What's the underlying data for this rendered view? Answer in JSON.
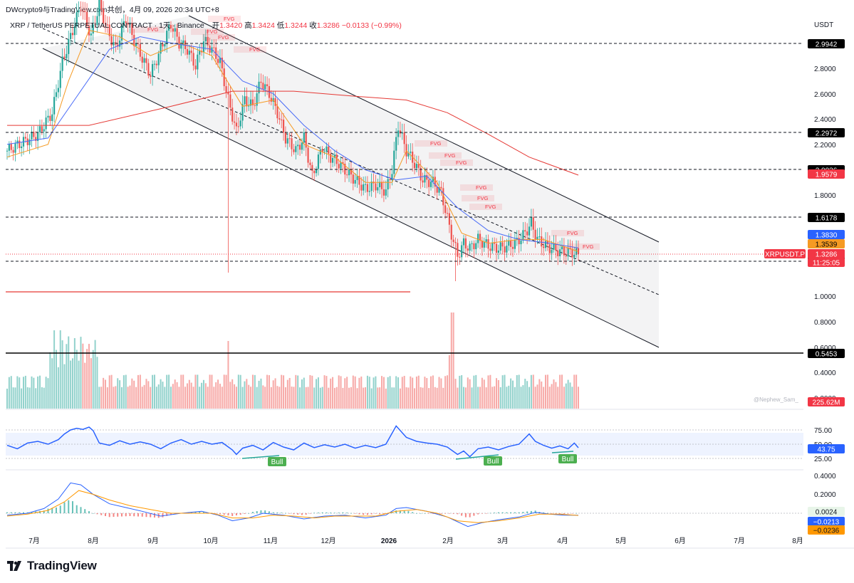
{
  "header": {
    "source_line": "DWcrypto9与TradingView.com共创，4月 09, 2026 20:34 UTC+8"
  },
  "legend": {
    "symbol": "XRP / TetherUS PERPETUAL CONTRACT · 1天 · Binance",
    "open_label": "开",
    "open": "1.3420",
    "high_label": "高",
    "high": "1.3424",
    "low_label": "低",
    "low": "1.3244",
    "close_label": "收",
    "close": "1.3286",
    "change": "−0.0133 (−0.99%)"
  },
  "watermark": "@Nephew_Sam_",
  "footer": {
    "brand": "TradingView"
  },
  "colors": {
    "up": "#26a69a",
    "down": "#ef5350",
    "ema_fast": "#f59a23",
    "ema_mid": "#4a6cf7",
    "ema_slow": "#e53935",
    "rsi": "#2962ff",
    "macd": "#2962ff",
    "signal": "#ff9800"
  },
  "chart_data": [
    {
      "type": "candlestick",
      "title": "XRP / TetherUS PERPETUAL CONTRACT · 1天 · Binance",
      "y_unit": "USDT",
      "y_ticks": [
        "2.8000",
        "2.6000",
        "2.4000",
        "2.2000",
        "2.0000",
        "1.8000",
        "1.0000",
        "0.8000",
        "0.6000",
        "0.4000",
        "0.2000"
      ],
      "x_ticks": [
        "7月",
        "8月",
        "9月",
        "10月",
        "11月",
        "12月",
        "2026",
        "2月",
        "3月",
        "4月",
        "5月",
        "6月",
        "7月",
        "8月"
      ],
      "ylim": [
        0.2,
        3.25
      ],
      "close_series": [
        [
          0,
          2.15
        ],
        [
          8,
          2.22
        ],
        [
          15,
          2.28
        ],
        [
          22,
          2.45
        ],
        [
          27,
          2.85
        ],
        [
          31,
          3.05
        ],
        [
          36,
          3.3
        ],
        [
          41,
          3.05
        ],
        [
          45,
          3.3
        ],
        [
          49,
          3.1
        ],
        [
          53,
          2.95
        ],
        [
          58,
          3.2
        ],
        [
          62,
          3.02
        ],
        [
          66,
          2.88
        ],
        [
          70,
          2.75
        ],
        [
          75,
          2.95
        ],
        [
          80,
          3.15
        ],
        [
          84,
          3.0
        ],
        [
          88,
          2.95
        ],
        [
          92,
          2.82
        ],
        [
          96,
          3.02
        ],
        [
          100,
          2.95
        ],
        [
          104,
          2.85
        ],
        [
          108,
          2.55
        ],
        [
          112,
          2.3
        ],
        [
          116,
          2.55
        ],
        [
          120,
          2.5
        ],
        [
          124,
          2.7
        ],
        [
          128,
          2.6
        ],
        [
          132,
          2.45
        ],
        [
          136,
          2.25
        ],
        [
          141,
          2.15
        ],
        [
          145,
          2.25
        ],
        [
          149,
          1.95
        ],
        [
          154,
          2.18
        ],
        [
          158,
          2.1
        ],
        [
          162,
          2.05
        ],
        [
          166,
          1.98
        ],
        [
          170,
          1.92
        ],
        [
          175,
          1.85
        ],
        [
          180,
          1.88
        ],
        [
          185,
          1.83
        ],
        [
          188,
          2.0
        ],
        [
          191,
          2.35
        ],
        [
          195,
          2.15
        ],
        [
          199,
          2.05
        ],
        [
          203,
          1.92
        ],
        [
          208,
          1.9
        ],
        [
          212,
          1.82
        ],
        [
          216,
          1.55
        ],
        [
          220,
          1.32
        ],
        [
          223,
          1.42
        ],
        [
          226,
          1.38
        ],
        [
          230,
          1.45
        ],
        [
          235,
          1.4
        ],
        [
          240,
          1.38
        ],
        [
          245,
          1.4
        ],
        [
          249,
          1.43
        ],
        [
          253,
          1.5
        ],
        [
          256,
          1.58
        ],
        [
          259,
          1.45
        ],
        [
          263,
          1.4
        ],
        [
          267,
          1.37
        ],
        [
          272,
          1.35
        ],
        [
          276,
          1.35
        ],
        [
          279,
          1.33
        ]
      ],
      "series": [
        {
          "name": "",
          "points": [
            [
              0,
              2.1
            ],
            [
              20,
              2.2
            ],
            [
              30,
              2.7
            ],
            [
              40,
              3.1
            ],
            [
              55,
              3.05
            ],
            [
              70,
              2.9
            ],
            [
              85,
              3.0
            ],
            [
              100,
              2.9
            ],
            [
              115,
              2.5
            ],
            [
              130,
              2.55
            ],
            [
              145,
              2.2
            ],
            [
              160,
              2.1
            ],
            [
              175,
              1.9
            ],
            [
              188,
              1.9
            ],
            [
              195,
              2.15
            ],
            [
              210,
              1.9
            ],
            [
              222,
              1.5
            ],
            [
              235,
              1.42
            ],
            [
              250,
              1.45
            ],
            [
              262,
              1.45
            ],
            [
              279,
              1.3539
            ]
          ]
        },
        {
          "name": "",
          "points": [
            [
              0,
              2.2
            ],
            [
              20,
              2.25
            ],
            [
              35,
              2.6
            ],
            [
              50,
              2.95
            ],
            [
              65,
              3.05
            ],
            [
              80,
              3.0
            ],
            [
              100,
              2.95
            ],
            [
              115,
              2.7
            ],
            [
              130,
              2.6
            ],
            [
              145,
              2.35
            ],
            [
              160,
              2.15
            ],
            [
              175,
              2.0
            ],
            [
              190,
              1.92
            ],
            [
              205,
              1.95
            ],
            [
              220,
              1.7
            ],
            [
              235,
              1.52
            ],
            [
              250,
              1.45
            ],
            [
              265,
              1.42
            ],
            [
              279,
              1.383
            ]
          ]
        },
        {
          "name": "",
          "points": [
            [
              0,
              2.35
            ],
            [
              40,
              2.35
            ],
            [
              80,
              2.5
            ],
            [
              110,
              2.62
            ],
            [
              140,
              2.62
            ],
            [
              170,
              2.58
            ],
            [
              195,
              2.55
            ],
            [
              215,
              2.45
            ],
            [
              235,
              2.28
            ],
            [
              255,
              2.1
            ],
            [
              279,
              1.9579
            ]
          ]
        }
      ],
      "levels": [
        "2.9942",
        "2.2972",
        "2.0036",
        "1.6178",
        "1.2771",
        "0.5453"
      ],
      "price_badges": [
        {
          "label": "1.9579",
          "bg": "#f23645",
          "fg": "#ffffff"
        },
        {
          "label": "1.3830",
          "bg": "#2962ff",
          "fg": "#ffffff"
        },
        {
          "label": "1.3539",
          "bg": "#f59a23",
          "fg": "#000000"
        },
        {
          "label": "XRPUSDT.P",
          "bg": "#f23645",
          "fg": "#ffffff"
        },
        {
          "label": "1.3286",
          "bg": "#f23645",
          "fg": "#ffffff"
        },
        {
          "label": "11:25:05",
          "bg": "#f23645",
          "fg": "#ffffff"
        },
        {
          "label": "225.62M",
          "bg": "#f23645",
          "fg": "#ffffff"
        }
      ],
      "annotations": [
        "FVG",
        "FVG",
        "FVG",
        "FVG",
        "FVG",
        "FVG",
        "FVG",
        "FVG",
        "FVG",
        "FVG",
        "FVG",
        "FVG",
        "FVG"
      ]
    },
    {
      "type": "line",
      "title": "RSI",
      "y_ticks": [
        "75.00",
        "50.00",
        "25.00"
      ],
      "ylim": [
        0,
        100
      ],
      "current": "43.75",
      "series": [
        {
          "name": "",
          "points": [
            [
              0,
              48
            ],
            [
              5,
              42
            ],
            [
              10,
              52
            ],
            [
              15,
              55
            ],
            [
              20,
              50
            ],
            [
              25,
              58
            ],
            [
              28,
              68
            ],
            [
              31,
              75
            ],
            [
              34,
              78
            ],
            [
              37,
              76
            ],
            [
              40,
              80
            ],
            [
              42,
              74
            ],
            [
              45,
              52
            ],
            [
              50,
              48
            ],
            [
              55,
              56
            ],
            [
              60,
              50
            ],
            [
              65,
              54
            ],
            [
              70,
              50
            ],
            [
              75,
              42
            ],
            [
              80,
              52
            ],
            [
              85,
              58
            ],
            [
              90,
              50
            ],
            [
              95,
              55
            ],
            [
              100,
              50
            ],
            [
              105,
              53
            ],
            [
              110,
              40
            ],
            [
              112,
              32
            ],
            [
              115,
              43
            ],
            [
              120,
              48
            ],
            [
              125,
              40
            ],
            [
              130,
              53
            ],
            [
              135,
              45
            ],
            [
              140,
              40
            ],
            [
              145,
              52
            ],
            [
              150,
              44
            ],
            [
              155,
              49
            ],
            [
              160,
              45
            ],
            [
              165,
              50
            ],
            [
              170,
              43
            ],
            [
              175,
              48
            ],
            [
              180,
              44
            ],
            [
              185,
              50
            ],
            [
              190,
              82
            ],
            [
              195,
              62
            ],
            [
              200,
              55
            ],
            [
              205,
              52
            ],
            [
              210,
              50
            ],
            [
              215,
              45
            ],
            [
              220,
              32
            ],
            [
              223,
              38
            ],
            [
              226,
              28
            ],
            [
              230,
              42
            ],
            [
              235,
              45
            ],
            [
              240,
              40
            ],
            [
              245,
              46
            ],
            [
              250,
              50
            ],
            [
              255,
              68
            ],
            [
              258,
              55
            ],
            [
              262,
              48
            ],
            [
              266,
              43
            ],
            [
              270,
              47
            ],
            [
              274,
              42
            ],
            [
              277,
              52
            ],
            [
              279,
              43.75
            ]
          ]
        }
      ],
      "markers": [
        "Bull",
        "Bull",
        "Bull"
      ]
    },
    {
      "type": "line",
      "title": "MACD",
      "y_ticks": [
        "0.4000",
        "0.2000"
      ],
      "ylim": [
        -0.2,
        0.45
      ],
      "values": [
        "0.0024",
        "−0.0213",
        "−0.0236"
      ],
      "series": [
        {
          "name": "",
          "points": [
            [
              0,
              -0.02
            ],
            [
              10,
              0.0
            ],
            [
              18,
              0.05
            ],
            [
              25,
              0.15
            ],
            [
              31,
              0.32
            ],
            [
              36,
              0.3
            ],
            [
              42,
              0.2
            ],
            [
              50,
              0.1
            ],
            [
              58,
              0.06
            ],
            [
              66,
              0.02
            ],
            [
              75,
              -0.03
            ],
            [
              85,
              0.0
            ],
            [
              95,
              0.02
            ],
            [
              103,
              -0.02
            ],
            [
              110,
              -0.08
            ],
            [
              118,
              -0.05
            ],
            [
              125,
              0.0
            ],
            [
              135,
              -0.02
            ],
            [
              145,
              -0.06
            ],
            [
              155,
              -0.03
            ],
            [
              165,
              -0.02
            ],
            [
              175,
              -0.05
            ],
            [
              185,
              -0.02
            ],
            [
              190,
              0.05
            ],
            [
              195,
              0.06
            ],
            [
              205,
              0.02
            ],
            [
              215,
              -0.04
            ],
            [
              225,
              -0.14
            ],
            [
              232,
              -0.1
            ],
            [
              240,
              -0.07
            ],
            [
              250,
              -0.04
            ],
            [
              258,
              0.01
            ],
            [
              265,
              -0.01
            ],
            [
              272,
              -0.02
            ],
            [
              279,
              -0.0213
            ]
          ]
        },
        {
          "name": "",
          "points": [
            [
              0,
              -0.03
            ],
            [
              10,
              -0.01
            ],
            [
              20,
              0.03
            ],
            [
              28,
              0.12
            ],
            [
              35,
              0.24
            ],
            [
              42,
              0.2
            ],
            [
              50,
              0.14
            ],
            [
              60,
              0.08
            ],
            [
              70,
              0.04
            ],
            [
              80,
              0.0
            ],
            [
              90,
              0.0
            ],
            [
              100,
              0.0
            ],
            [
              110,
              -0.05
            ],
            [
              120,
              -0.05
            ],
            [
              130,
              -0.02
            ],
            [
              140,
              -0.03
            ],
            [
              150,
              -0.05
            ],
            [
              160,
              -0.03
            ],
            [
              170,
              -0.03
            ],
            [
              180,
              -0.03
            ],
            [
              190,
              0.02
            ],
            [
              200,
              0.04
            ],
            [
              210,
              0.0
            ],
            [
              220,
              -0.08
            ],
            [
              230,
              -0.1
            ],
            [
              240,
              -0.08
            ],
            [
              250,
              -0.05
            ],
            [
              260,
              -0.01
            ],
            [
              270,
              -0.01
            ],
            [
              279,
              -0.0236
            ]
          ]
        }
      ]
    }
  ]
}
